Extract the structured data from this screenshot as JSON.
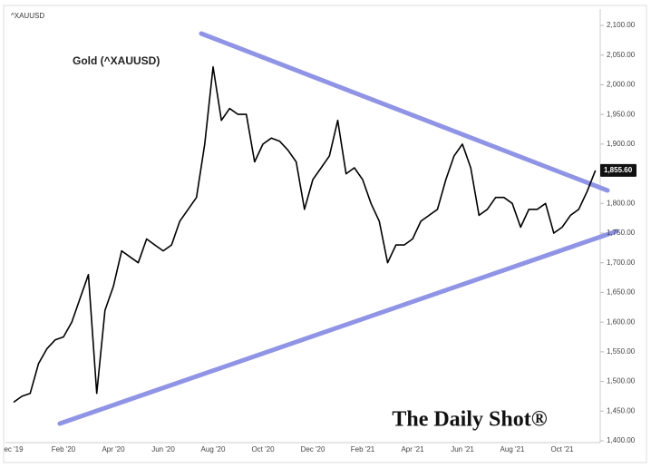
{
  "chart_data": {
    "type": "line",
    "ticker": "^XAUUSD",
    "title": "Gold (^XAUUSD)",
    "watermark": "The Daily Shot®",
    "categories": [
      "ec '19",
      null,
      null,
      null,
      null,
      null,
      "Feb '20",
      null,
      null,
      null,
      null,
      null,
      "Apr '20",
      null,
      null,
      null,
      null,
      null,
      "Jun '20",
      null,
      null,
      null,
      null,
      null,
      "Aug '20",
      null,
      null,
      null,
      null,
      null,
      "Oct '20",
      null,
      null,
      null,
      null,
      null,
      "Dec '20",
      null,
      null,
      null,
      null,
      null,
      "Feb '21",
      null,
      null,
      null,
      null,
      null,
      "Apr '21",
      null,
      null,
      null,
      null,
      null,
      "Jun '21",
      null,
      null,
      null,
      null,
      null,
      "Aug '21",
      null,
      null,
      null,
      null,
      null,
      "Oct '21",
      null,
      null,
      null,
      null
    ],
    "series": [
      {
        "name": "Gold",
        "color": "#000000",
        "values": [
          1465,
          1475,
          1480,
          1530,
          1555,
          1570,
          1575,
          1600,
          1640,
          1680,
          1480,
          1620,
          1660,
          1720,
          1710,
          1700,
          1740,
          1730,
          1720,
          1730,
          1770,
          1790,
          1810,
          1900,
          2030,
          1940,
          1960,
          1950,
          1950,
          1870,
          1900,
          1910,
          1905,
          1890,
          1870,
          1790,
          1840,
          1860,
          1880,
          1940,
          1850,
          1860,
          1840,
          1800,
          1770,
          1700,
          1730,
          1730,
          1740,
          1770,
          1780,
          1790,
          1840,
          1880,
          1900,
          1860,
          1780,
          1790,
          1810,
          1810,
          1800,
          1760,
          1790,
          1790,
          1800,
          1750,
          1760,
          1780,
          1790,
          1820,
          1855.6
        ],
        "value_labels": [
          null,
          null,
          null,
          null,
          null,
          null,
          null,
          null,
          null,
          null,
          null,
          null,
          null,
          null,
          null,
          null,
          null,
          null,
          null,
          null,
          null,
          null,
          null,
          null,
          null,
          null,
          null,
          null,
          null,
          null,
          null,
          null,
          null,
          null,
          null,
          null,
          null,
          null,
          null,
          null,
          null,
          null,
          null,
          null,
          null,
          null,
          null,
          null,
          null,
          null,
          null,
          null,
          null,
          null,
          null,
          null,
          null,
          null,
          null,
          null,
          null,
          null,
          null,
          null,
          null,
          null,
          null,
          null,
          null,
          null,
          "1,855.60"
        ]
      }
    ],
    "ylim": [
      1400,
      2100
    ],
    "yticks": [
      {
        "value": 1400,
        "label": "1,400.00"
      },
      {
        "value": 1450,
        "label": "1,450.00"
      },
      {
        "value": 1500,
        "label": "1,500.00"
      },
      {
        "value": 1550,
        "label": "1,550.00"
      },
      {
        "value": 1600,
        "label": "1,600.00"
      },
      {
        "value": 1650,
        "label": "1,650.00"
      },
      {
        "value": 1700,
        "label": "1,700.00"
      },
      {
        "value": 1750,
        "label": "1,750.00"
      },
      {
        "value": 1800,
        "label": "1,800.00"
      },
      {
        "value": 1850,
        "label": "1,850.00"
      },
      {
        "value": 1900,
        "label": "1,900.00"
      },
      {
        "value": 1950,
        "label": "1,950.00"
      },
      {
        "value": 2000,
        "label": "2,000.00"
      },
      {
        "value": 2050,
        "label": "2,050.00"
      },
      {
        "value": 2100,
        "label": "2,100.00"
      }
    ],
    "grid": false
  }
}
